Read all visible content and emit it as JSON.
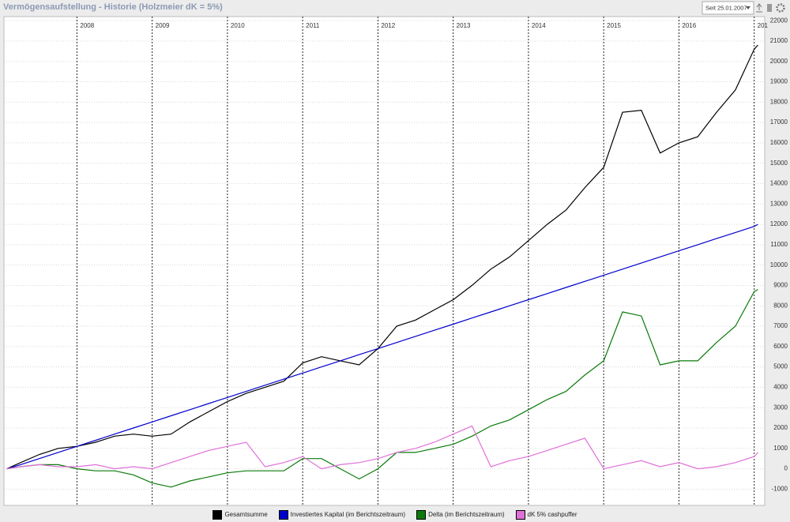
{
  "controls": {
    "range_select": "Seit 25.01.2007"
  },
  "chart_data": {
    "type": "line",
    "title": "Vermögensaufstellung - Historie (Holzmeier dK = 5%)",
    "x": [
      2007.07,
      2007.25,
      2007.5,
      2007.75,
      2008,
      2008.25,
      2008.5,
      2008.75,
      2009,
      2009.25,
      2009.5,
      2009.75,
      2010,
      2010.25,
      2010.5,
      2010.75,
      2011,
      2011.25,
      2011.5,
      2011.75,
      2012,
      2012.25,
      2012.5,
      2012.75,
      2013,
      2013.25,
      2013.5,
      2013.75,
      2014,
      2014.25,
      2014.5,
      2014.75,
      2015,
      2015.25,
      2015.5,
      2015.75,
      2016,
      2016.25,
      2016.5,
      2016.75,
      2017,
      2017.05
    ],
    "series": [
      {
        "name": "Gesamtsumme",
        "color": "#000000",
        "values": [
          0,
          300,
          700,
          1000,
          1100,
          1300,
          1600,
          1700,
          1600,
          1700,
          2300,
          2800,
          3300,
          3700,
          4000,
          4300,
          5200,
          5500,
          5300,
          5100,
          5900,
          7000,
          7300,
          7800,
          8300,
          9000,
          9800,
          10400,
          11200,
          12000,
          12700,
          13800,
          14800,
          17500,
          17600,
          15500,
          16000,
          16300,
          17500,
          18600,
          20600,
          20800
        ]
      },
      {
        "name": "Investiertes Kapital (im Berichtszeitraum)",
        "color": "#0000cc",
        "values": [
          0,
          200,
          500,
          800,
          1100,
          1400,
          1700,
          2000,
          2300,
          2600,
          2900,
          3200,
          3500,
          3800,
          4100,
          4400,
          4700,
          5000,
          5300,
          5600,
          5900,
          6200,
          6500,
          6800,
          7100,
          7400,
          7700,
          8000,
          8300,
          8600,
          8900,
          9200,
          9500,
          9800,
          10100,
          10400,
          10700,
          11000,
          11300,
          11600,
          11900,
          12000
        ]
      },
      {
        "name": "Delta (im Berichtszeitraum)",
        "color": "#0a7a0a",
        "values": [
          0,
          100,
          200,
          200,
          0,
          -100,
          -100,
          -300,
          -700,
          -900,
          -600,
          -400,
          -200,
          -100,
          -100,
          -100,
          500,
          500,
          0,
          -500,
          0,
          800,
          800,
          1000,
          1200,
          1600,
          2100,
          2400,
          2900,
          3400,
          3800,
          4600,
          5300,
          7700,
          7500,
          5100,
          5300,
          5300,
          6200,
          7000,
          8700,
          8800
        ]
      },
      {
        "name": "dK 5% cashpuffer",
        "color": "#e070d8",
        "values": [
          0,
          100,
          200,
          100,
          100,
          200,
          0,
          100,
          0,
          300,
          600,
          900,
          1100,
          1300,
          100,
          300,
          600,
          0,
          200,
          300,
          500,
          800,
          1000,
          1300,
          1700,
          2100,
          100,
          400,
          600,
          900,
          1200,
          1500,
          0,
          200,
          400,
          100,
          300,
          0,
          100,
          300,
          600,
          800
        ]
      }
    ],
    "xlim": [
      2007.03,
      2017.14
    ],
    "xticks": [
      2008,
      2009,
      2010,
      2011,
      2012,
      2013,
      2014,
      2015,
      2016,
      {
        "value": 2017,
        "label": "201"
      }
    ],
    "ylim": [
      -1800,
      22200
    ],
    "yticks": [
      -1000,
      0,
      1000,
      2000,
      3000,
      4000,
      5000,
      6000,
      7000,
      8000,
      9000,
      10000,
      11000,
      12000,
      13000,
      14000,
      15000,
      16000,
      17000,
      18000,
      19000,
      20000,
      21000,
      22000
    ],
    "grid": true,
    "legend": "bottom"
  }
}
